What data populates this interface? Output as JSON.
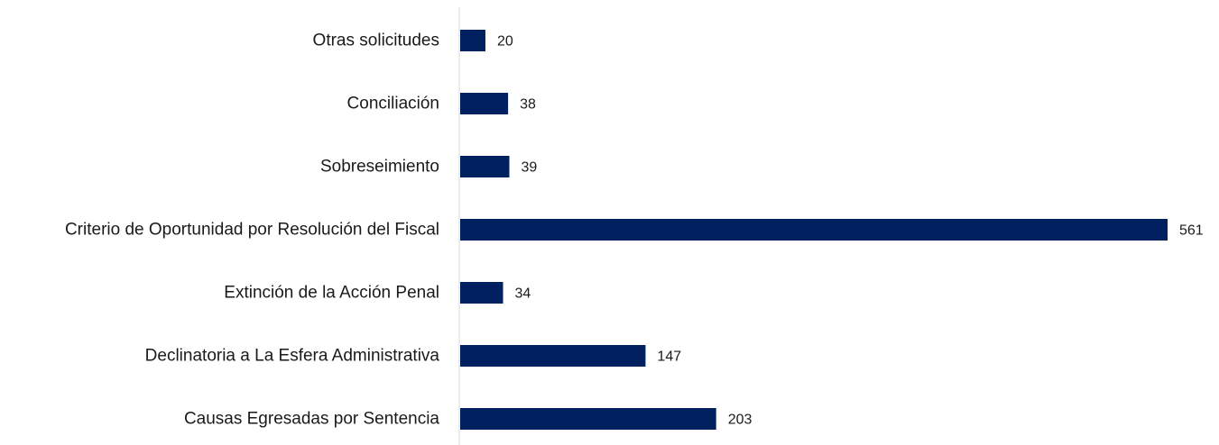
{
  "chart_data": {
    "type": "bar",
    "orientation": "horizontal",
    "categories": [
      "Otras solicitudes",
      "Conciliación",
      "Sobreseimiento",
      "Criterio de Oportunidad por Resolución del Fiscal",
      "Extinción de la Acción Penal",
      "Declinatoria a La Esfera Administrativa",
      "Causas Egresadas por Sentencia"
    ],
    "values": [
      20,
      38,
      39,
      561,
      34,
      147,
      203
    ],
    "data_labels": [
      "20",
      "38",
      "39",
      "561",
      "34",
      "147",
      "203"
    ],
    "title": "",
    "xlabel": "",
    "ylabel": "",
    "xlim": [
      0,
      561
    ],
    "grid": false,
    "legend": "none",
    "bar_color": "#002060",
    "axis_color": "#d9d9d9"
  }
}
